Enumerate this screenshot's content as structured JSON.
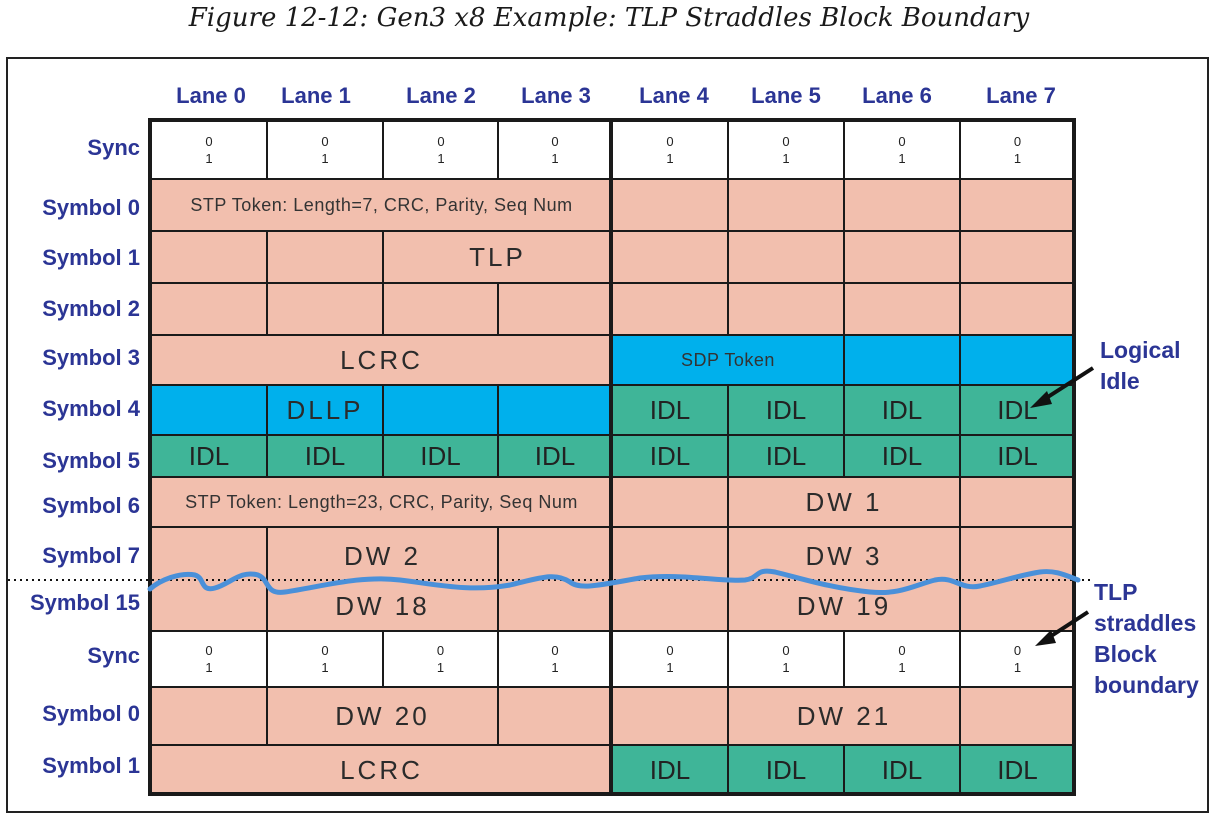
{
  "caption": "Figure 12-12: Gen3 x8 Example: TLP Straddles Block Boundary",
  "lanes": [
    "Lane 0",
    "Lane 1",
    "Lane 2",
    "Lane 3",
    "Lane 4",
    "Lane 5",
    "Lane 6",
    "Lane 7"
  ],
  "rows": [
    "Sync",
    "Symbol 0",
    "Symbol 1",
    "Symbol 2",
    "Symbol 3",
    "Symbol 4",
    "Symbol 5",
    "Symbol 6",
    "Symbol 7",
    "Symbol 15",
    "Sync",
    "Symbol 0",
    "Symbol 1"
  ],
  "sync_bits": [
    "0",
    "1"
  ],
  "cells": {
    "stp1": "STP Token: Length=7, CRC, Parity, Seq Num",
    "tlp": "TLP",
    "lcrc1": "LCRC",
    "sdp": "SDP Token",
    "dllp": "DLLP",
    "idl": "IDL",
    "stp2": "STP Token: Length=23, CRC, Parity, Seq Num",
    "dw1": "DW 1",
    "dw2": "DW 2",
    "dw3": "DW 3",
    "dw18": "DW 18",
    "dw19": "DW 19",
    "dw20": "DW 20",
    "dw21": "DW 21",
    "lcrc2": "LCRC"
  },
  "annotations": {
    "logical_idle": [
      "Logical",
      "Idle"
    ],
    "straddle": [
      "TLP",
      "straddles",
      "Block",
      "boundary"
    ]
  },
  "colors": {
    "tlp": "#f2bfae",
    "dllp_sdp": "#00b0ec",
    "idle": "#3fb598",
    "label": "#2b3595",
    "wave": "#4a90d9"
  }
}
